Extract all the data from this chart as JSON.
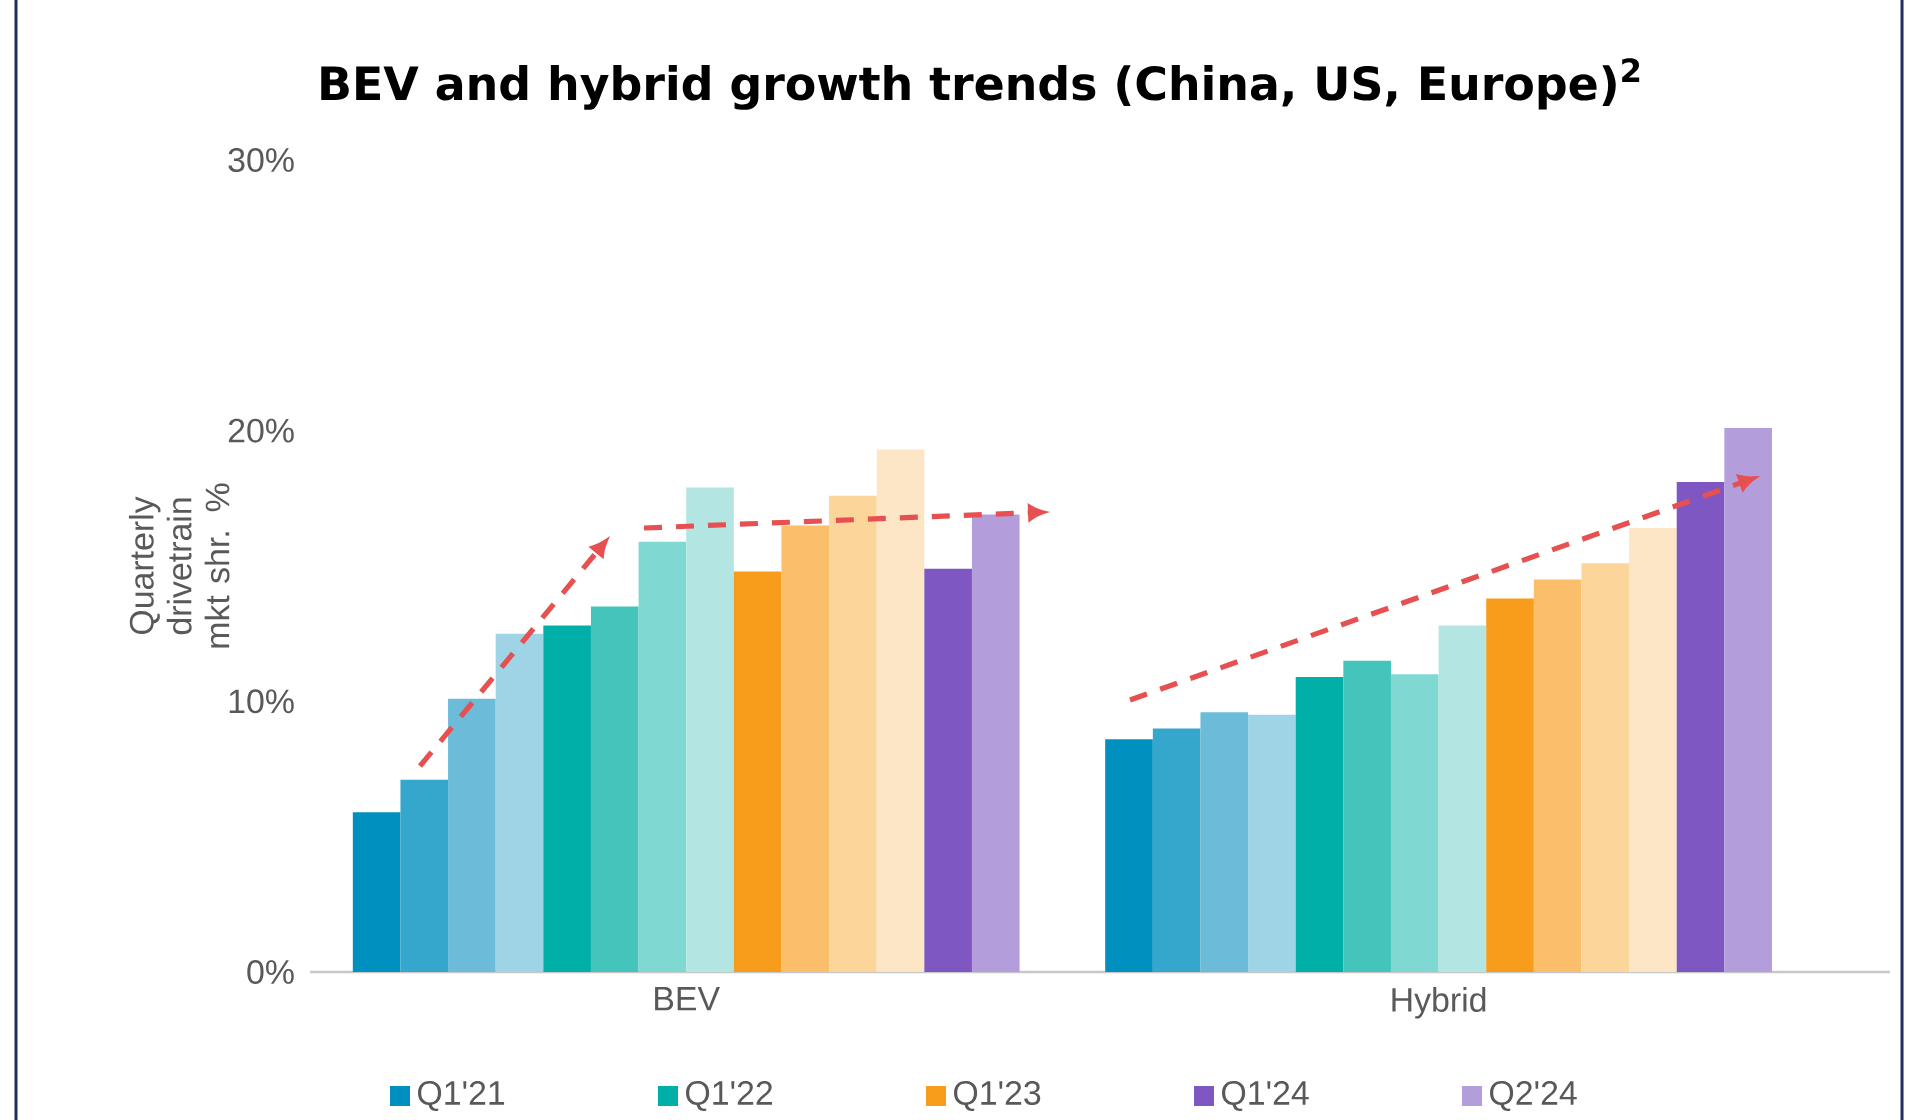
{
  "chart_data": {
    "type": "bar",
    "title": "BEV and hybrid growth trends (China, US, Europe)$^{2}$",
    "ylabel": "Quarterly drivetrain mkt shr. %",
    "categories": [
      "BEV",
      "Hybrid"
    ],
    "series": [
      {
        "name": "Q1'21",
        "color": "#0090c0",
        "values": [
          5.9,
          8.6
        ]
      },
      {
        "color": "#35a6cc",
        "values": [
          7.1,
          9.0
        ]
      },
      {
        "color": "#6bbbd9",
        "values": [
          10.1,
          9.6
        ]
      },
      {
        "color": "#9fd3e6",
        "values": [
          12.5,
          9.5
        ]
      },
      {
        "name": "Q1'22",
        "color": "#00b0a8",
        "values": [
          12.8,
          10.9
        ]
      },
      {
        "color": "#45c4bc",
        "values": [
          13.5,
          11.5
        ]
      },
      {
        "color": "#80d8d2",
        "values": [
          15.9,
          11.0
        ]
      },
      {
        "color": "#b3e6e2",
        "values": [
          17.9,
          12.8
        ]
      },
      {
        "name": "Q1'23",
        "color": "#f89c1c",
        "values": [
          14.8,
          13.8
        ]
      },
      {
        "color": "#fbbe6a",
        "values": [
          16.5,
          14.5
        ]
      },
      {
        "color": "#fcd59b",
        "values": [
          17.6,
          15.1
        ]
      },
      {
        "color": "#fde6c6",
        "values": [
          19.3,
          16.4
        ]
      },
      {
        "name": "Q1'24",
        "color": "#7e57c2",
        "values": [
          14.9,
          18.1
        ]
      },
      {
        "name": "Q2'24",
        "color": "#b39ddb",
        "values": [
          16.9,
          20.1
        ]
      }
    ],
    "ylim": [
      0,
      30
    ],
    "yticks": [
      {
        "value": 0,
        "label": "0%"
      },
      {
        "value": 10,
        "label": "10%"
      },
      {
        "value": 20,
        "label": "20%"
      },
      {
        "value": 30,
        "label": "30%"
      }
    ],
    "grid": false,
    "legend": "bottom"
  }
}
